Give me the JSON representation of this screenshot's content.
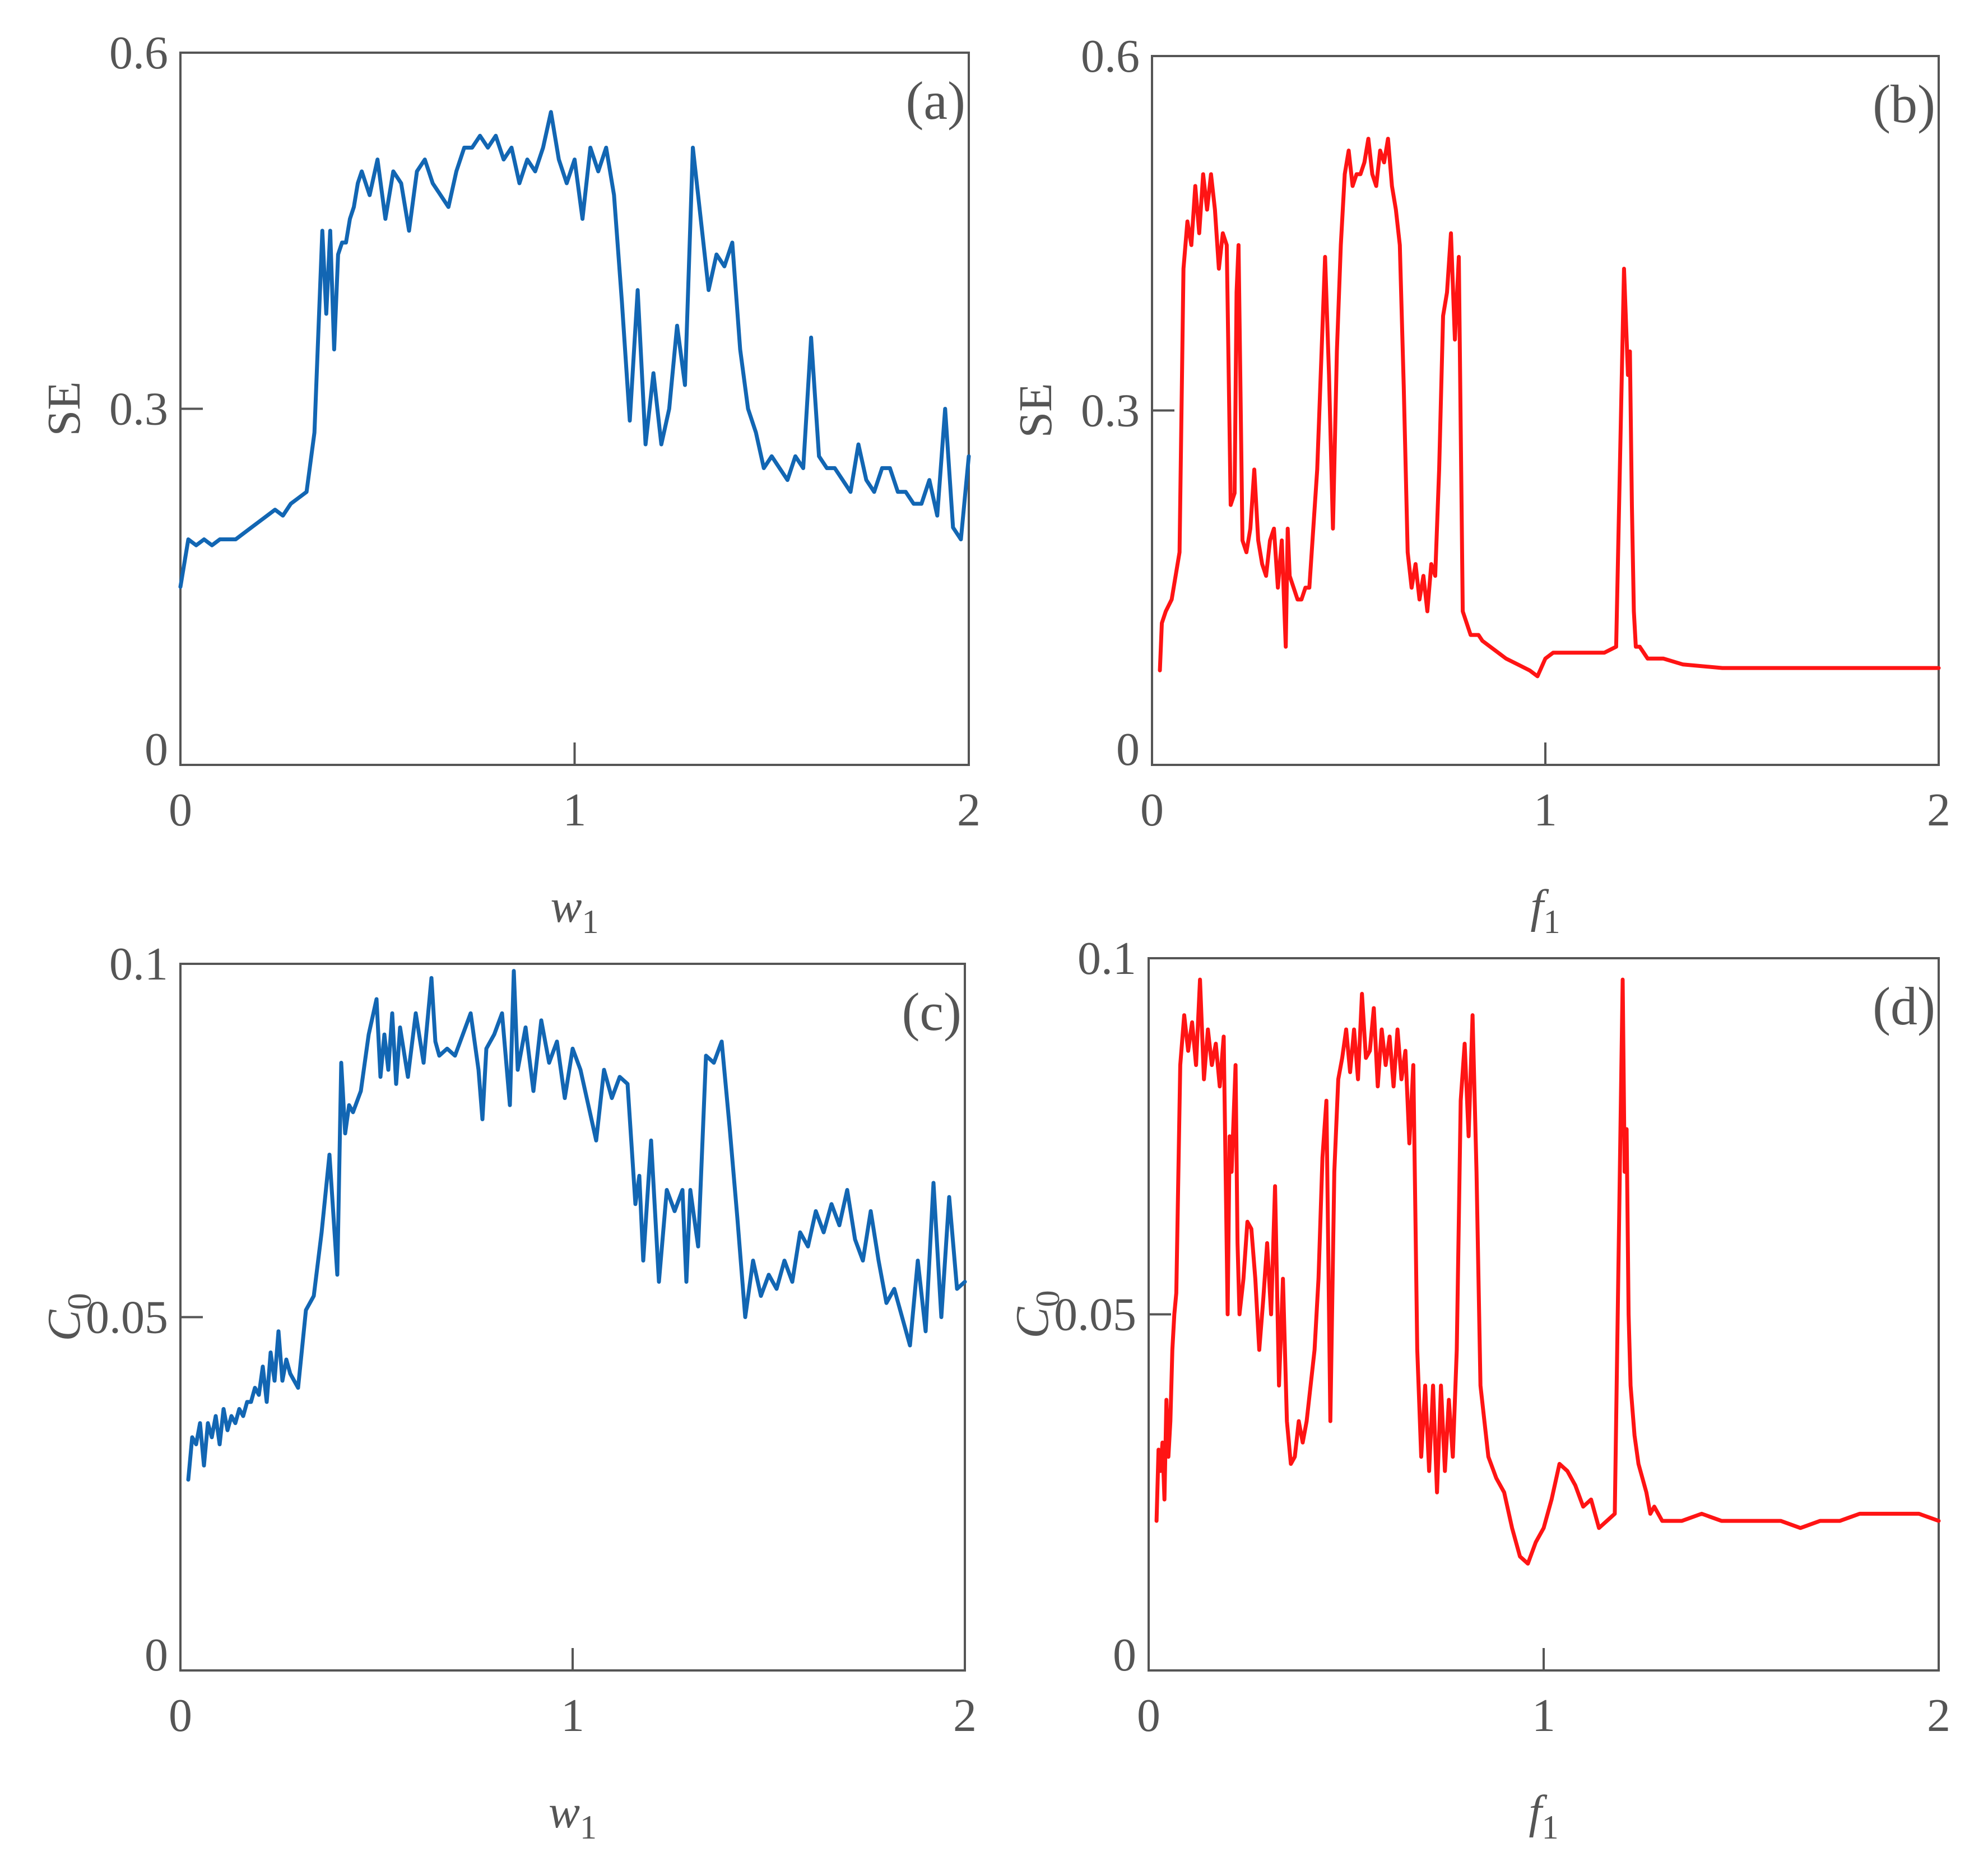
{
  "colors": {
    "blue": "#1266b3",
    "red": "#ff1414",
    "axis": "#555555"
  },
  "chart_data": [
    {
      "type": "line",
      "panel_label": "(a)",
      "xlabel": "w",
      "xlabel_sub": "1",
      "ylabel": "SE",
      "ylabel_sub": "",
      "xlim": [
        0,
        2
      ],
      "ylim": [
        0,
        0.6
      ],
      "xticks": [
        0,
        1,
        2
      ],
      "xtick_labels": [
        "0",
        "1",
        "2"
      ],
      "yticks": [
        0,
        0.3,
        0.6
      ],
      "ytick_labels": [
        "0",
        "0.3",
        "0.6"
      ],
      "grid": false,
      "series": [
        {
          "color": "#1266b3",
          "x": [
            0.0,
            0.02,
            0.04,
            0.06,
            0.08,
            0.1,
            0.12,
            0.14,
            0.16,
            0.18,
            0.2,
            0.22,
            0.24,
            0.26,
            0.28,
            0.3,
            0.32,
            0.34,
            0.36,
            0.37,
            0.38,
            0.39,
            0.4,
            0.41,
            0.42,
            0.43,
            0.44,
            0.45,
            0.46,
            0.48,
            0.5,
            0.52,
            0.54,
            0.56,
            0.58,
            0.6,
            0.62,
            0.64,
            0.66,
            0.68,
            0.7,
            0.72,
            0.74,
            0.76,
            0.78,
            0.8,
            0.82,
            0.84,
            0.86,
            0.88,
            0.9,
            0.92,
            0.94,
            0.96,
            0.98,
            1.0,
            1.02,
            1.04,
            1.06,
            1.08,
            1.1,
            1.12,
            1.14,
            1.16,
            1.18,
            1.2,
            1.22,
            1.24,
            1.26,
            1.28,
            1.3,
            1.32,
            1.34,
            1.36,
            1.38,
            1.4,
            1.42,
            1.44,
            1.46,
            1.48,
            1.5,
            1.52,
            1.54,
            1.56,
            1.58,
            1.6,
            1.62,
            1.64,
            1.66,
            1.68,
            1.7,
            1.72,
            1.74,
            1.76,
            1.78,
            1.8,
            1.82,
            1.84,
            1.86,
            1.88,
            1.9,
            1.92,
            1.94,
            1.96,
            1.98,
            2.0
          ],
          "y": [
            0.15,
            0.19,
            0.185,
            0.19,
            0.185,
            0.19,
            0.19,
            0.19,
            0.195,
            0.2,
            0.205,
            0.21,
            0.215,
            0.21,
            0.22,
            0.225,
            0.23,
            0.28,
            0.45,
            0.38,
            0.45,
            0.35,
            0.43,
            0.44,
            0.44,
            0.46,
            0.47,
            0.49,
            0.5,
            0.48,
            0.51,
            0.46,
            0.5,
            0.49,
            0.45,
            0.5,
            0.51,
            0.49,
            0.48,
            0.47,
            0.5,
            0.52,
            0.52,
            0.53,
            0.52,
            0.53,
            0.51,
            0.52,
            0.49,
            0.51,
            0.5,
            0.52,
            0.55,
            0.51,
            0.49,
            0.51,
            0.46,
            0.52,
            0.5,
            0.52,
            0.48,
            0.39,
            0.29,
            0.4,
            0.27,
            0.33,
            0.27,
            0.3,
            0.37,
            0.32,
            0.52,
            0.46,
            0.4,
            0.43,
            0.42,
            0.44,
            0.35,
            0.3,
            0.28,
            0.25,
            0.26,
            0.25,
            0.24,
            0.26,
            0.25,
            0.36,
            0.26,
            0.25,
            0.25,
            0.24,
            0.23,
            0.27,
            0.24,
            0.23,
            0.25,
            0.25,
            0.23,
            0.23,
            0.22,
            0.22,
            0.24,
            0.21,
            0.3,
            0.2,
            0.19,
            0.26
          ]
        }
      ]
    },
    {
      "type": "line",
      "panel_label": "(b)",
      "xlabel": "f",
      "xlabel_sub": "1",
      "ylabel": "SE",
      "ylabel_sub": "",
      "xlim": [
        0,
        2
      ],
      "ylim": [
        0,
        0.6
      ],
      "xticks": [
        0,
        1,
        2
      ],
      "xtick_labels": [
        "0",
        "1",
        "2"
      ],
      "yticks": [
        0,
        0.3,
        0.6
      ],
      "ytick_labels": [
        "0",
        "0.3",
        "0.6"
      ],
      "grid": false,
      "series": [
        {
          "color": "#ff1414",
          "x": [
            0.02,
            0.025,
            0.035,
            0.05,
            0.07,
            0.08,
            0.09,
            0.1,
            0.11,
            0.12,
            0.13,
            0.14,
            0.15,
            0.16,
            0.17,
            0.18,
            0.19,
            0.2,
            0.21,
            0.215,
            0.22,
            0.23,
            0.24,
            0.25,
            0.26,
            0.27,
            0.28,
            0.29,
            0.3,
            0.31,
            0.32,
            0.33,
            0.34,
            0.345,
            0.35,
            0.36,
            0.37,
            0.38,
            0.39,
            0.4,
            0.42,
            0.44,
            0.45,
            0.46,
            0.47,
            0.48,
            0.49,
            0.5,
            0.51,
            0.52,
            0.53,
            0.54,
            0.55,
            0.56,
            0.57,
            0.58,
            0.59,
            0.6,
            0.61,
            0.62,
            0.63,
            0.64,
            0.65,
            0.66,
            0.67,
            0.68,
            0.69,
            0.7,
            0.71,
            0.72,
            0.73,
            0.74,
            0.75,
            0.76,
            0.77,
            0.78,
            0.79,
            0.8,
            0.81,
            0.82,
            0.83,
            0.84,
            0.86,
            0.88,
            0.9,
            0.93,
            0.96,
            0.98,
            1.0,
            1.02,
            1.05,
            1.1,
            1.15,
            1.18,
            1.2,
            1.21,
            1.215,
            1.22,
            1.225,
            1.23,
            1.24,
            1.26,
            1.3,
            1.35,
            1.45,
            1.55,
            1.7,
            1.85,
            2.0
          ],
          "y": [
            0.08,
            0.12,
            0.13,
            0.14,
            0.18,
            0.42,
            0.46,
            0.44,
            0.49,
            0.45,
            0.5,
            0.47,
            0.5,
            0.47,
            0.42,
            0.45,
            0.44,
            0.22,
            0.23,
            0.4,
            0.44,
            0.19,
            0.18,
            0.2,
            0.25,
            0.19,
            0.17,
            0.16,
            0.19,
            0.2,
            0.15,
            0.19,
            0.1,
            0.2,
            0.16,
            0.15,
            0.14,
            0.14,
            0.15,
            0.15,
            0.25,
            0.43,
            0.33,
            0.2,
            0.35,
            0.44,
            0.5,
            0.52,
            0.49,
            0.5,
            0.5,
            0.51,
            0.53,
            0.5,
            0.49,
            0.52,
            0.51,
            0.53,
            0.49,
            0.47,
            0.44,
            0.32,
            0.18,
            0.15,
            0.17,
            0.14,
            0.16,
            0.13,
            0.17,
            0.16,
            0.25,
            0.38,
            0.4,
            0.45,
            0.36,
            0.43,
            0.13,
            0.12,
            0.11,
            0.11,
            0.11,
            0.105,
            0.1,
            0.095,
            0.09,
            0.085,
            0.08,
            0.075,
            0.09,
            0.095,
            0.095,
            0.095,
            0.095,
            0.1,
            0.42,
            0.33,
            0.35,
            0.22,
            0.13,
            0.1,
            0.1,
            0.09,
            0.09,
            0.085,
            0.082,
            0.082,
            0.082,
            0.082,
            0.082
          ]
        }
      ]
    },
    {
      "type": "line",
      "panel_label": "(c)",
      "xlabel": "w",
      "xlabel_sub": "1",
      "ylabel": "C",
      "ylabel_sub": "0",
      "xlim": [
        0,
        2
      ],
      "ylim": [
        0,
        0.1
      ],
      "xticks": [
        0,
        1,
        2
      ],
      "xtick_labels": [
        "0",
        "1",
        "2"
      ],
      "yticks": [
        0,
        0.05,
        0.1
      ],
      "ytick_labels": [
        "0",
        "0.05",
        "0.1"
      ],
      "grid": false,
      "series": [
        {
          "color": "#1266b3",
          "x": [
            0.02,
            0.03,
            0.04,
            0.05,
            0.06,
            0.07,
            0.08,
            0.09,
            0.1,
            0.11,
            0.12,
            0.13,
            0.14,
            0.15,
            0.16,
            0.17,
            0.18,
            0.19,
            0.2,
            0.21,
            0.22,
            0.23,
            0.24,
            0.25,
            0.26,
            0.27,
            0.28,
            0.3,
            0.32,
            0.34,
            0.36,
            0.38,
            0.4,
            0.41,
            0.42,
            0.43,
            0.44,
            0.46,
            0.48,
            0.5,
            0.51,
            0.52,
            0.53,
            0.54,
            0.55,
            0.56,
            0.58,
            0.6,
            0.62,
            0.64,
            0.65,
            0.66,
            0.68,
            0.7,
            0.72,
            0.74,
            0.76,
            0.77,
            0.78,
            0.8,
            0.82,
            0.84,
            0.85,
            0.86,
            0.88,
            0.9,
            0.92,
            0.94,
            0.96,
            0.98,
            1.0,
            1.02,
            1.04,
            1.06,
            1.08,
            1.1,
            1.12,
            1.14,
            1.16,
            1.17,
            1.18,
            1.2,
            1.22,
            1.24,
            1.26,
            1.28,
            1.29,
            1.3,
            1.32,
            1.34,
            1.36,
            1.38,
            1.4,
            1.42,
            1.44,
            1.46,
            1.48,
            1.5,
            1.52,
            1.54,
            1.56,
            1.58,
            1.6,
            1.62,
            1.64,
            1.66,
            1.68,
            1.7,
            1.72,
            1.74,
            1.76,
            1.78,
            1.8,
            1.82,
            1.84,
            1.86,
            1.88,
            1.9,
            1.92,
            1.94,
            1.96,
            1.98,
            2.0
          ],
          "y": [
            0.027,
            0.033,
            0.032,
            0.035,
            0.029,
            0.035,
            0.033,
            0.036,
            0.032,
            0.037,
            0.034,
            0.036,
            0.035,
            0.037,
            0.036,
            0.038,
            0.038,
            0.04,
            0.039,
            0.043,
            0.038,
            0.045,
            0.041,
            0.048,
            0.041,
            0.044,
            0.042,
            0.04,
            0.051,
            0.053,
            0.062,
            0.073,
            0.056,
            0.086,
            0.076,
            0.08,
            0.079,
            0.082,
            0.09,
            0.095,
            0.084,
            0.09,
            0.085,
            0.093,
            0.083,
            0.091,
            0.084,
            0.093,
            0.086,
            0.098,
            0.089,
            0.087,
            0.088,
            0.087,
            0.09,
            0.093,
            0.085,
            0.078,
            0.088,
            0.09,
            0.093,
            0.08,
            0.099,
            0.085,
            0.091,
            0.082,
            0.092,
            0.086,
            0.089,
            0.081,
            0.088,
            0.085,
            0.08,
            0.075,
            0.085,
            0.081,
            0.084,
            0.083,
            0.066,
            0.07,
            0.058,
            0.075,
            0.055,
            0.068,
            0.065,
            0.068,
            0.055,
            0.068,
            0.06,
            0.087,
            0.086,
            0.089,
            0.077,
            0.064,
            0.05,
            0.058,
            0.053,
            0.056,
            0.054,
            0.058,
            0.055,
            0.062,
            0.06,
            0.065,
            0.062,
            0.066,
            0.063,
            0.068,
            0.061,
            0.058,
            0.065,
            0.058,
            0.052,
            0.054,
            0.05,
            0.046,
            0.058,
            0.048,
            0.069,
            0.05,
            0.067,
            0.054,
            0.055
          ]
        }
      ]
    },
    {
      "type": "line",
      "panel_label": "(d)",
      "xlabel": "f",
      "xlabel_sub": "1",
      "ylabel": "C",
      "ylabel_sub": "0",
      "xlim": [
        0,
        2
      ],
      "ylim": [
        0,
        0.1
      ],
      "xticks": [
        0,
        1,
        2
      ],
      "xtick_labels": [
        "0",
        "1",
        "2"
      ],
      "yticks": [
        0,
        0.05,
        0.1
      ],
      "ytick_labels": [
        "0",
        "0.05",
        "0.1"
      ],
      "grid": false,
      "series": [
        {
          "color": "#ff1414",
          "x": [
            0.02,
            0.025,
            0.03,
            0.035,
            0.04,
            0.045,
            0.05,
            0.055,
            0.06,
            0.065,
            0.07,
            0.08,
            0.09,
            0.1,
            0.11,
            0.12,
            0.13,
            0.14,
            0.15,
            0.16,
            0.17,
            0.18,
            0.19,
            0.2,
            0.205,
            0.21,
            0.22,
            0.225,
            0.23,
            0.24,
            0.25,
            0.26,
            0.27,
            0.28,
            0.29,
            0.3,
            0.31,
            0.32,
            0.33,
            0.34,
            0.35,
            0.36,
            0.37,
            0.38,
            0.39,
            0.4,
            0.41,
            0.42,
            0.43,
            0.44,
            0.45,
            0.46,
            0.47,
            0.48,
            0.49,
            0.5,
            0.51,
            0.52,
            0.53,
            0.54,
            0.55,
            0.56,
            0.57,
            0.58,
            0.59,
            0.6,
            0.61,
            0.62,
            0.63,
            0.64,
            0.65,
            0.66,
            0.67,
            0.68,
            0.69,
            0.7,
            0.71,
            0.72,
            0.73,
            0.74,
            0.75,
            0.76,
            0.77,
            0.78,
            0.79,
            0.8,
            0.81,
            0.82,
            0.83,
            0.84,
            0.86,
            0.88,
            0.9,
            0.92,
            0.94,
            0.96,
            0.98,
            1.0,
            1.02,
            1.04,
            1.06,
            1.08,
            1.1,
            1.12,
            1.14,
            1.16,
            1.18,
            1.2,
            1.205,
            1.21,
            1.215,
            1.22,
            1.23,
            1.24,
            1.25,
            1.26,
            1.27,
            1.28,
            1.29,
            1.3,
            1.32,
            1.35,
            1.4,
            1.45,
            1.5,
            1.55,
            1.6,
            1.65,
            1.7,
            1.75,
            1.8,
            1.85,
            1.9,
            1.95,
            2.0
          ],
          "y": [
            0.021,
            0.031,
            0.028,
            0.032,
            0.024,
            0.038,
            0.03,
            0.035,
            0.045,
            0.05,
            0.053,
            0.085,
            0.092,
            0.087,
            0.091,
            0.085,
            0.097,
            0.083,
            0.09,
            0.085,
            0.088,
            0.082,
            0.089,
            0.05,
            0.075,
            0.07,
            0.085,
            0.06,
            0.05,
            0.055,
            0.063,
            0.062,
            0.055,
            0.045,
            0.052,
            0.06,
            0.05,
            0.068,
            0.04,
            0.055,
            0.035,
            0.029,
            0.03,
            0.035,
            0.032,
            0.035,
            0.04,
            0.045,
            0.055,
            0.072,
            0.08,
            0.035,
            0.07,
            0.083,
            0.086,
            0.09,
            0.084,
            0.09,
            0.083,
            0.095,
            0.086,
            0.087,
            0.093,
            0.082,
            0.09,
            0.085,
            0.089,
            0.082,
            0.09,
            0.083,
            0.087,
            0.074,
            0.085,
            0.045,
            0.03,
            0.04,
            0.028,
            0.04,
            0.025,
            0.04,
            0.028,
            0.038,
            0.03,
            0.045,
            0.08,
            0.088,
            0.075,
            0.092,
            0.07,
            0.04,
            0.03,
            0.027,
            0.025,
            0.02,
            0.016,
            0.015,
            0.018,
            0.02,
            0.024,
            0.029,
            0.028,
            0.026,
            0.023,
            0.024,
            0.02,
            0.021,
            0.022,
            0.097,
            0.07,
            0.076,
            0.05,
            0.04,
            0.033,
            0.029,
            0.027,
            0.025,
            0.022,
            0.023,
            0.022,
            0.021,
            0.021,
            0.021,
            0.022,
            0.021,
            0.021,
            0.021,
            0.021,
            0.02,
            0.021,
            0.021,
            0.022,
            0.022,
            0.022,
            0.022,
            0.021
          ]
        }
      ]
    }
  ]
}
